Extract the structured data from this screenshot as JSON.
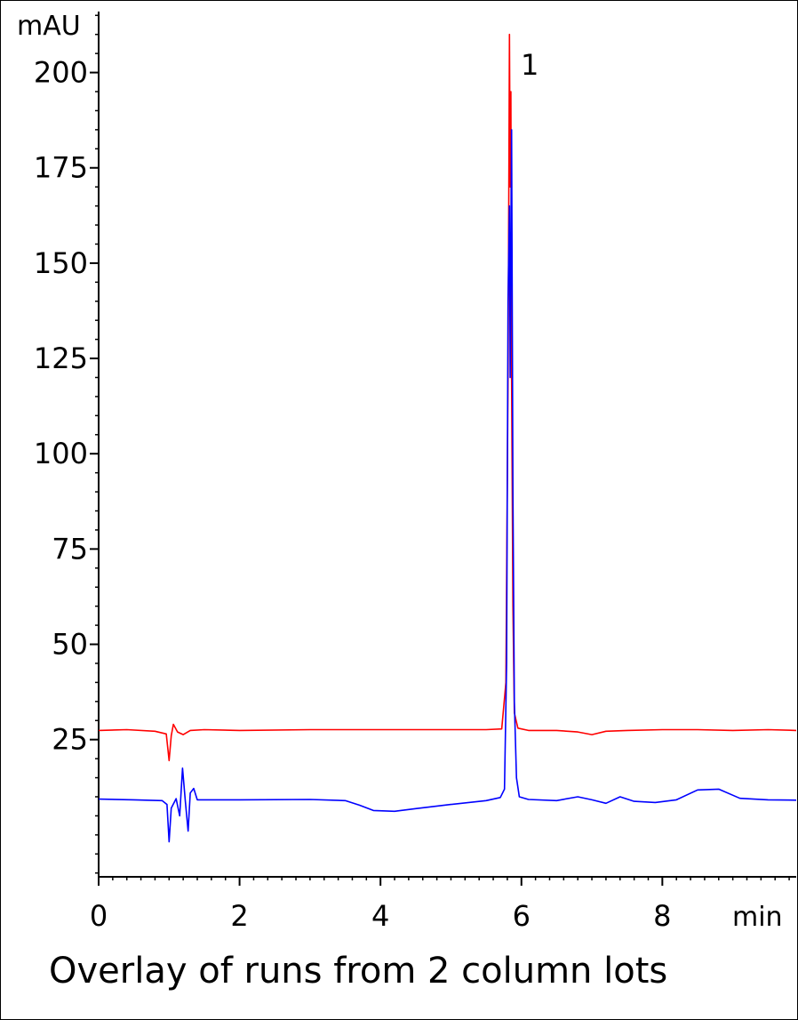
{
  "caption": "Overlay of runs from 2 column lots",
  "chart_data": {
    "type": "line",
    "title": "",
    "xlabel": "min",
    "ylabel": "mAU",
    "xlim": [
      0,
      9.9
    ],
    "ylim": [
      -11,
      216
    ],
    "x_ticks": [
      0,
      2,
      4,
      6,
      8
    ],
    "x_tick_labels": [
      "0",
      "2",
      "4",
      "6",
      "8"
    ],
    "y_ticks": [
      25,
      50,
      75,
      100,
      125,
      150,
      175,
      200
    ],
    "y_tick_labels": [
      "25",
      "50",
      "75",
      "100",
      "125",
      "150",
      "175",
      "200"
    ],
    "grid": false,
    "legend": "none",
    "peak_labels": [
      {
        "text": "1",
        "x": 5.83,
        "y": 210
      }
    ],
    "series": [
      {
        "color": "#ff0000",
        "points": [
          [
            0.0,
            27.4
          ],
          [
            0.4,
            27.6
          ],
          [
            0.8,
            27.2
          ],
          [
            0.96,
            26.5
          ],
          [
            1.0,
            19.5
          ],
          [
            1.03,
            26.0
          ],
          [
            1.06,
            29.0
          ],
          [
            1.12,
            27.0
          ],
          [
            1.2,
            26.3
          ],
          [
            1.3,
            27.4
          ],
          [
            1.5,
            27.6
          ],
          [
            2.0,
            27.4
          ],
          [
            3.0,
            27.6
          ],
          [
            4.0,
            27.6
          ],
          [
            5.0,
            27.6
          ],
          [
            5.5,
            27.6
          ],
          [
            5.72,
            27.8
          ],
          [
            5.78,
            40
          ],
          [
            5.81,
            120
          ],
          [
            5.83,
            210
          ],
          [
            5.84,
            170
          ],
          [
            5.85,
            195
          ],
          [
            5.86,
            120
          ],
          [
            5.88,
            60
          ],
          [
            5.9,
            32
          ],
          [
            5.95,
            28.0
          ],
          [
            6.1,
            27.4
          ],
          [
            6.5,
            27.4
          ],
          [
            6.8,
            27.0
          ],
          [
            7.0,
            26.3
          ],
          [
            7.2,
            27.2
          ],
          [
            7.5,
            27.4
          ],
          [
            8.0,
            27.6
          ],
          [
            8.5,
            27.6
          ],
          [
            9.0,
            27.4
          ],
          [
            9.5,
            27.6
          ],
          [
            9.9,
            27.4
          ]
        ]
      },
      {
        "color": "#0000ff",
        "points": [
          [
            0.0,
            9.4
          ],
          [
            0.5,
            9.2
          ],
          [
            0.9,
            9.0
          ],
          [
            0.97,
            8.0
          ],
          [
            1.0,
            -1.8
          ],
          [
            1.03,
            7.0
          ],
          [
            1.1,
            9.5
          ],
          [
            1.15,
            5.0
          ],
          [
            1.19,
            17.5
          ],
          [
            1.23,
            9.0
          ],
          [
            1.27,
            1.0
          ],
          [
            1.3,
            11.0
          ],
          [
            1.35,
            12.2
          ],
          [
            1.4,
            9.2
          ],
          [
            1.5,
            9.2
          ],
          [
            2.0,
            9.2
          ],
          [
            3.0,
            9.3
          ],
          [
            3.5,
            9.0
          ],
          [
            3.7,
            7.8
          ],
          [
            3.9,
            6.4
          ],
          [
            4.2,
            6.2
          ],
          [
            4.5,
            6.9
          ],
          [
            5.0,
            8.0
          ],
          [
            5.5,
            9.0
          ],
          [
            5.7,
            9.8
          ],
          [
            5.76,
            12
          ],
          [
            5.79,
            45
          ],
          [
            5.81,
            140
          ],
          [
            5.83,
            165
          ],
          [
            5.84,
            120
          ],
          [
            5.86,
            185
          ],
          [
            5.88,
            90
          ],
          [
            5.9,
            35
          ],
          [
            5.93,
            15
          ],
          [
            5.97,
            10
          ],
          [
            6.1,
            9.3
          ],
          [
            6.5,
            9.0
          ],
          [
            6.8,
            10.0
          ],
          [
            7.0,
            9.2
          ],
          [
            7.2,
            8.3
          ],
          [
            7.4,
            10.0
          ],
          [
            7.6,
            8.8
          ],
          [
            7.9,
            8.5
          ],
          [
            8.2,
            9.2
          ],
          [
            8.5,
            11.8
          ],
          [
            8.8,
            12.0
          ],
          [
            9.1,
            9.6
          ],
          [
            9.5,
            9.2
          ],
          [
            9.9,
            9.1
          ]
        ]
      }
    ]
  }
}
